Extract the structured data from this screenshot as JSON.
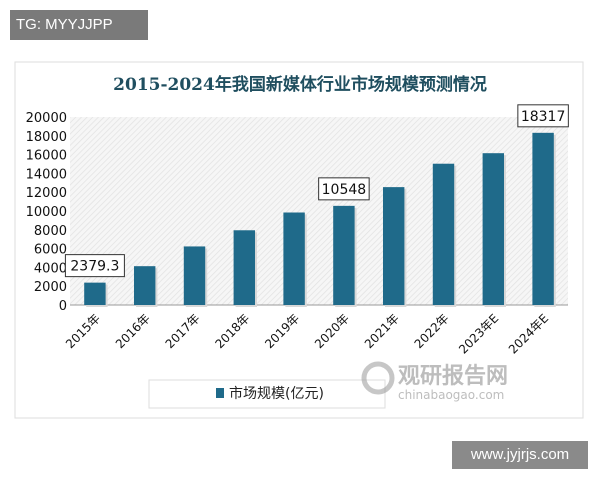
{
  "watermarks": {
    "top_left": "TG: MYYJJPP",
    "bottom_right": "www.jyjrjs.com",
    "logo_cn": "观研报告网",
    "logo_en": "chinabaogao.com"
  },
  "chart_data": {
    "type": "bar",
    "title": "2015-2024年我国新媒体行业市场规模预测情况",
    "categories": [
      "2015年",
      "2016年",
      "2017年",
      "2018年",
      "2019年",
      "2020年",
      "2021年",
      "2022年",
      "2023年E",
      "2024年E"
    ],
    "series": [
      {
        "name": "市场规模(亿元)",
        "values": [
          2379.3,
          4130,
          6230,
          7950,
          9840,
          10548,
          12540,
          15030,
          16150,
          18317
        ]
      }
    ],
    "data_labels": [
      {
        "index": 0,
        "text": "2379.3"
      },
      {
        "index": 5,
        "text": "10548"
      },
      {
        "index": 9,
        "text": "18317"
      }
    ],
    "ylim": [
      0,
      20000
    ],
    "yticks": [
      0,
      2000,
      4000,
      6000,
      8000,
      10000,
      12000,
      14000,
      16000,
      18000,
      20000
    ],
    "legend": "bottom",
    "colors": {
      "bar": "#1f6a8a",
      "title": "#1f4e5f"
    }
  }
}
